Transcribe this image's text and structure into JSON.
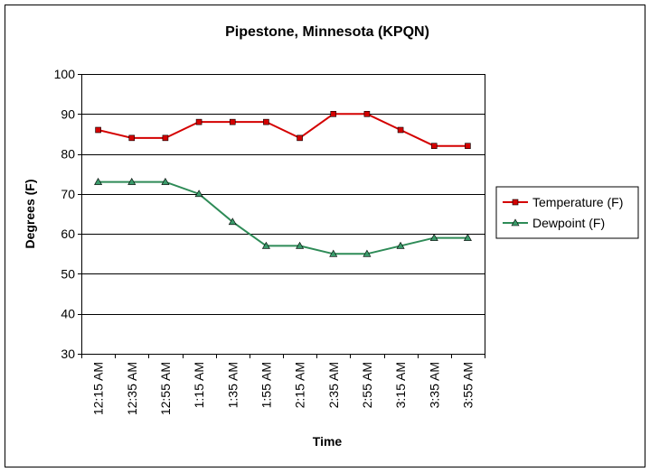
{
  "chart_data": {
    "type": "line",
    "title": "Pipestone, Minnesota (KPQN)",
    "xlabel": "Time",
    "ylabel": "Degrees (F)",
    "ylim": [
      30,
      100
    ],
    "yticks": [
      30,
      40,
      50,
      60,
      70,
      80,
      90,
      100
    ],
    "grid": true,
    "legend_position": "right",
    "categories": [
      "12:15 AM",
      "12:35 AM",
      "12:55 AM",
      "1:15 AM",
      "1:35 AM",
      "1:55 AM",
      "2:15 AM",
      "2:35 AM",
      "2:55 AM",
      "3:15 AM",
      "3:35 AM",
      "3:55 AM"
    ],
    "series": [
      {
        "name": "Temperature (F)",
        "values": [
          86,
          84,
          84,
          88,
          88,
          88,
          84,
          90,
          90,
          86,
          82,
          82
        ],
        "color": "#d40000",
        "marker": "square"
      },
      {
        "name": "Dewpoint (F)",
        "values": [
          73,
          73,
          73,
          70,
          63,
          57,
          57,
          55,
          55,
          57,
          59,
          59
        ],
        "color": "#2e8b57",
        "marker_fill": "#3a9a6a",
        "marker": "triangle"
      }
    ]
  }
}
